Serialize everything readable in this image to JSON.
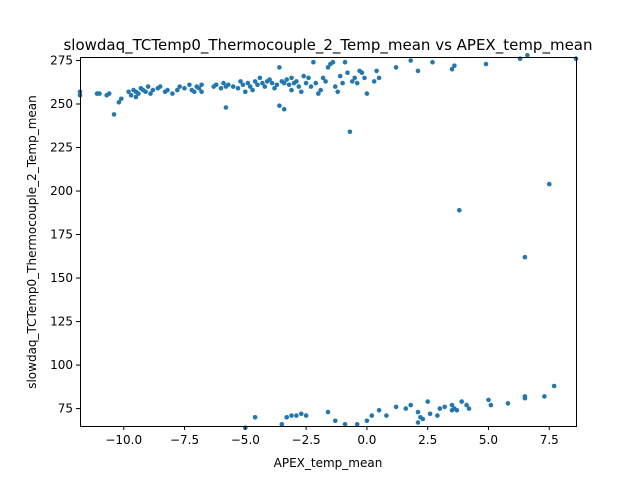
{
  "chart_data": {
    "type": "scatter",
    "title": "slowdaq_TCTemp0_Thermocouple_2_Temp_mean vs APEX_temp_mean",
    "xlabel": "APEX_temp_mean",
    "ylabel": "slowdaq_TCTemp0_Thermocouple_2_Temp_mean",
    "xlim": [
      -11.8,
      8.6
    ],
    "ylim": [
      65,
      277
    ],
    "xticks": [
      -10.0,
      -7.5,
      -5.0,
      -2.5,
      0.0,
      2.5,
      5.0,
      7.5
    ],
    "xtick_labels": [
      "−10.0",
      "−7.5",
      "−5.0",
      "−2.5",
      "0.0",
      "2.5",
      "5.0",
      "7.5"
    ],
    "yticks": [
      75,
      100,
      125,
      150,
      175,
      200,
      225,
      250,
      275
    ],
    "ytick_labels": [
      "75",
      "100",
      "125",
      "150",
      "175",
      "200",
      "225",
      "250",
      "275"
    ],
    "grid": false,
    "color": "#1f77b4",
    "points": [
      [
        -11.8,
        257
      ],
      [
        -11.8,
        255
      ],
      [
        -11.1,
        256
      ],
      [
        -11.0,
        256
      ],
      [
        -10.7,
        255
      ],
      [
        -10.6,
        256
      ],
      [
        -10.4,
        244
      ],
      [
        -10.2,
        251
      ],
      [
        -10.1,
        253
      ],
      [
        -9.8,
        257
      ],
      [
        -9.7,
        255
      ],
      [
        -9.6,
        258
      ],
      [
        -9.5,
        257
      ],
      [
        -9.5,
        254
      ],
      [
        -9.4,
        256
      ],
      [
        -9.3,
        259
      ],
      [
        -9.2,
        258
      ],
      [
        -9.1,
        257
      ],
      [
        -9.0,
        260
      ],
      [
        -8.9,
        256
      ],
      [
        -8.8,
        258
      ],
      [
        -8.6,
        259
      ],
      [
        -8.5,
        260
      ],
      [
        -8.3,
        257
      ],
      [
        -8.2,
        258
      ],
      [
        -8.0,
        256
      ],
      [
        -7.8,
        258
      ],
      [
        -7.7,
        260
      ],
      [
        -7.5,
        259
      ],
      [
        -7.3,
        261
      ],
      [
        -7.2,
        258
      ],
      [
        -7.1,
        257
      ],
      [
        -7.0,
        260
      ],
      [
        -6.9,
        259
      ],
      [
        -6.8,
        261
      ],
      [
        -6.8,
        257
      ],
      [
        -6.3,
        260
      ],
      [
        -6.2,
        261
      ],
      [
        -6.0,
        259
      ],
      [
        -5.9,
        262
      ],
      [
        -5.8,
        260
      ],
      [
        -5.8,
        248
      ],
      [
        -5.7,
        261
      ],
      [
        -5.5,
        260
      ],
      [
        -5.3,
        259
      ],
      [
        -5.2,
        263
      ],
      [
        -5.1,
        261
      ],
      [
        -5.0,
        257
      ],
      [
        -4.9,
        262
      ],
      [
        -4.8,
        260
      ],
      [
        -4.7,
        258
      ],
      [
        -4.6,
        263
      ],
      [
        -4.5,
        261
      ],
      [
        -4.4,
        265
      ],
      [
        -4.3,
        262
      ],
      [
        -4.2,
        260
      ],
      [
        -4.1,
        263
      ],
      [
        -4.0,
        264
      ],
      [
        -3.9,
        262
      ],
      [
        -3.8,
        259
      ],
      [
        -3.7,
        261
      ],
      [
        -3.6,
        271
      ],
      [
        -3.6,
        249
      ],
      [
        -3.5,
        263
      ],
      [
        -3.4,
        247
      ],
      [
        -3.4,
        262
      ],
      [
        -3.3,
        264
      ],
      [
        -3.2,
        261
      ],
      [
        -3.1,
        258
      ],
      [
        -3.1,
        265
      ],
      [
        -3.0,
        262
      ],
      [
        -2.9,
        263
      ],
      [
        -2.8,
        260
      ],
      [
        -2.7,
        257
      ],
      [
        -2.6,
        266
      ],
      [
        -2.5,
        262
      ],
      [
        -2.4,
        265
      ],
      [
        -2.3,
        260
      ],
      [
        -2.2,
        274
      ],
      [
        -2.1,
        262
      ],
      [
        -2.0,
        256
      ],
      [
        -1.9,
        258
      ],
      [
        -1.8,
        265
      ],
      [
        -1.7,
        263
      ],
      [
        -1.6,
        271
      ],
      [
        -1.5,
        273
      ],
      [
        -1.4,
        274
      ],
      [
        -1.3,
        260
      ],
      [
        -1.2,
        257
      ],
      [
        -1.1,
        266
      ],
      [
        -1.0,
        262
      ],
      [
        -0.9,
        274
      ],
      [
        -0.8,
        268
      ],
      [
        -0.7,
        234
      ],
      [
        -0.6,
        263
      ],
      [
        -0.5,
        265
      ],
      [
        -0.4,
        262
      ],
      [
        -0.3,
        269
      ],
      [
        -0.2,
        268
      ],
      [
        -0.1,
        265
      ],
      [
        0.0,
        256
      ],
      [
        0.3,
        263
      ],
      [
        0.4,
        269
      ],
      [
        0.5,
        265
      ],
      [
        1.2,
        271
      ],
      [
        1.8,
        275
      ],
      [
        2.1,
        269
      ],
      [
        2.7,
        274
      ],
      [
        3.5,
        270
      ],
      [
        3.6,
        272
      ],
      [
        4.9,
        273
      ],
      [
        6.3,
        276
      ],
      [
        6.6,
        278
      ],
      [
        8.6,
        276
      ],
      [
        3.8,
        189
      ],
      [
        7.5,
        204
      ],
      [
        6.5,
        162
      ],
      [
        -5.0,
        64
      ],
      [
        -4.6,
        70
      ],
      [
        -3.5,
        66
      ],
      [
        -3.3,
        70
      ],
      [
        -3.1,
        71
      ],
      [
        -2.9,
        71
      ],
      [
        -2.7,
        72
      ],
      [
        -2.5,
        71
      ],
      [
        -1.6,
        73
      ],
      [
        -1.3,
        68
      ],
      [
        -0.9,
        66
      ],
      [
        -0.4,
        66
      ],
      [
        0.0,
        68
      ],
      [
        0.2,
        71
      ],
      [
        0.5,
        74
      ],
      [
        0.8,
        71
      ],
      [
        1.2,
        76
      ],
      [
        1.6,
        75
      ],
      [
        1.8,
        77
      ],
      [
        2.1,
        73
      ],
      [
        2.2,
        70
      ],
      [
        2.3,
        69
      ],
      [
        2.5,
        79
      ],
      [
        2.6,
        72
      ],
      [
        2.9,
        71
      ],
      [
        3.0,
        75
      ],
      [
        3.2,
        76
      ],
      [
        3.5,
        77
      ],
      [
        3.5,
        74
      ],
      [
        3.6,
        75
      ],
      [
        3.7,
        74
      ],
      [
        3.9,
        79
      ],
      [
        4.1,
        77
      ],
      [
        4.2,
        75
      ],
      [
        5.0,
        80
      ],
      [
        5.1,
        77
      ],
      [
        5.8,
        78
      ],
      [
        6.5,
        82
      ],
      [
        6.5,
        81
      ],
      [
        7.3,
        82
      ],
      [
        7.7,
        88
      ],
      [
        2.1,
        67
      ]
    ]
  }
}
